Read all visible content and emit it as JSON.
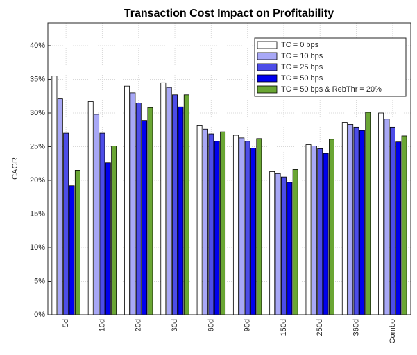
{
  "chart_data": {
    "type": "bar",
    "title": "Transaction Cost Impact on Profitability",
    "y_label": "CAGR",
    "categories": [
      "5d",
      "10d",
      "20d",
      "30d",
      "60d",
      "90d",
      "150d",
      "250d",
      "360d",
      "Combo"
    ],
    "series": [
      {
        "name": "TC = 0 bps",
        "color": "#ffffff",
        "values": [
          35.5,
          31.7,
          34.0,
          34.5,
          28.1,
          26.7,
          21.3,
          25.3,
          28.6,
          30.0
        ]
      },
      {
        "name": "TC = 10 bps",
        "color": "#a8a8f6",
        "values": [
          32.1,
          29.8,
          33.0,
          33.8,
          27.6,
          26.3,
          21.0,
          25.1,
          28.3,
          29.1
        ]
      },
      {
        "name": "TC = 25 bps",
        "color": "#4d4de8",
        "values": [
          27.0,
          27.0,
          31.5,
          32.7,
          26.9,
          25.8,
          20.5,
          24.7,
          27.9,
          27.9
        ]
      },
      {
        "name": "TC = 50 bps",
        "color": "#0000ee",
        "values": [
          19.2,
          22.6,
          28.9,
          30.9,
          25.8,
          24.8,
          19.7,
          24.0,
          27.4,
          25.7
        ]
      },
      {
        "name": "TC = 50 bps & RebThr = 20%",
        "color": "#6aa634",
        "values": [
          21.5,
          25.1,
          30.8,
          32.7,
          27.2,
          26.2,
          21.6,
          26.1,
          30.1,
          26.6
        ]
      }
    ],
    "ylim": [
      0,
      43.4
    ],
    "yticks": [
      {
        "value": 0,
        "label": "0%"
      },
      {
        "value": 5,
        "label": "5%"
      },
      {
        "value": 10,
        "label": "10%"
      },
      {
        "value": 15,
        "label": "15%"
      },
      {
        "value": 20,
        "label": "20%"
      },
      {
        "value": 25,
        "label": "25%"
      },
      {
        "value": 30,
        "label": "30%"
      },
      {
        "value": 35,
        "label": "35%"
      },
      {
        "value": 40,
        "label": "40%"
      }
    ],
    "grid": true,
    "legend": "upper-right"
  }
}
